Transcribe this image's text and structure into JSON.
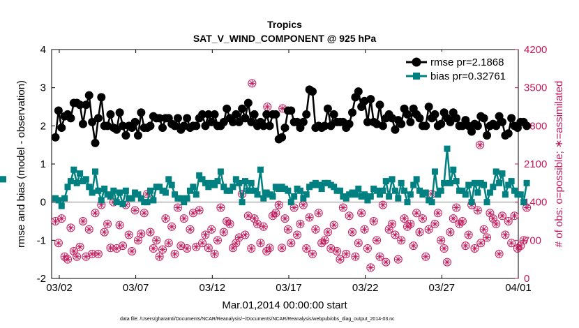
{
  "chart_data": {
    "type": "line",
    "title": "Tropics",
    "subtitle": "SAT_V_WIND_COMPONENT @ 925 hPa",
    "xlabel": "Mar.01,2014 00:00:00 start",
    "ylabel": "rmse and bias (model - observation)",
    "ylabel_right": "# of obs: o=possible; ∗=assimilated",
    "footnote": "data file: /Users/gharamti/Documents/NCAR/Reanalysis/~/Documents/NCAR/Reanalysis/webpub/obs_diag_output_2014-03.nc",
    "x_unit": "days since Mar.01,2014",
    "xlim": [
      0.5,
      31.0
    ],
    "ylim": [
      -2,
      4
    ],
    "ylim_right": [
      0,
      4200
    ],
    "x_ticks": [
      1,
      6,
      11,
      16,
      21,
      26,
      31
    ],
    "x_tick_labels": [
      "03/02",
      "03/07",
      "03/12",
      "03/17",
      "03/22",
      "03/27",
      "04/01"
    ],
    "y_ticks": [
      -2,
      -1,
      0,
      1,
      2,
      3,
      4
    ],
    "y_tick_labels": [
      "-2",
      "-1",
      "0",
      "1",
      "2",
      "3",
      "4"
    ],
    "y2_ticks": [
      0,
      700,
      1400,
      2100,
      2800,
      3500,
      4200
    ],
    "y2_tick_labels": [
      "0",
      "700",
      "1400",
      "2100",
      "2800",
      "3500",
      "4200"
    ],
    "legend_position": "top-right",
    "colors": {
      "rmse": "#000000",
      "bias": "#008080",
      "obs": "#c2185b",
      "zero_line": "#b0b0b0"
    },
    "series": [
      {
        "name": "rmse",
        "legend_label": "rmse pr=2.1868",
        "axis": "left",
        "marker": "circle",
        "values": [
          1.7,
          2.4,
          1.95,
          2.25,
          2.3,
          2.2,
          2.6,
          2.6,
          2.55,
          2.05,
          2.55,
          2.8,
          2.1,
          1.55,
          2.2,
          2.75,
          2.0,
          2.0,
          2.3,
          1.95,
          1.9,
          2.35,
          2.0,
          1.75,
          2.0,
          1.95,
          2.1,
          1.75,
          2.35,
          1.95,
          1.95,
          2.0,
          2.25,
          2.2,
          2.2,
          1.95,
          2.2,
          2.2,
          2.05,
          2.0,
          2.2,
          1.9,
          2.0,
          2.2,
          1.95,
          2.0,
          2.0,
          2.2,
          2.3,
          2.0,
          2.3,
          2.1,
          2.3,
          2.0,
          2.0,
          2.1,
          2.45,
          2.2,
          2.1,
          2.3,
          2.1,
          2.45,
          2.2,
          2.6,
          2.1,
          2.3,
          2.0,
          2.1,
          2.0,
          2.3,
          2.0,
          2.3,
          2.3,
          1.65,
          1.7,
          1.95,
          2.4,
          2.4,
          2.1,
          2.1,
          1.95,
          2.1,
          2.3,
          2.95,
          2.9,
          1.95,
          2.0,
          1.95,
          2.0,
          2.45,
          2.0,
          2.3,
          2.1,
          2.1,
          2.1,
          1.95,
          2.05,
          2.35,
          2.75,
          2.9,
          2.5,
          2.65,
          2.1,
          2.7,
          2.1,
          2.05,
          2.55,
          2.0,
          2.2,
          2.3,
          2.2,
          1.9,
          2.15,
          2.05,
          2.45,
          2.3,
          2.1,
          2.45,
          2.3,
          2.2,
          2.0,
          2.0,
          2.5,
          2.2,
          2.3,
          2.0,
          2.05,
          2.35,
          2.2,
          2.1,
          2.35,
          2.2,
          2.0,
          2.0,
          2.15,
          2.0,
          1.85,
          2.05,
          2.0,
          2.25,
          2.2,
          1.75,
          2.0,
          2.05,
          2.0,
          2.25,
          2.1,
          1.75,
          1.8,
          2.2,
          2.0,
          1.95,
          2.1,
          2.1,
          2.0
        ]
      },
      {
        "name": "bias",
        "legend_label": "bias pr=0.32761",
        "axis": "left",
        "marker": "square",
        "values": [
          0.1,
          0.05,
          -0.1,
          0.1,
          0.4,
          0.55,
          0.85,
          0.5,
          0.75,
          0.55,
          0.6,
          0.4,
          0.25,
          0.8,
          0.3,
          0.05,
          0.35,
          0.2,
          0.15,
          0.3,
          0.0,
          0.25,
          -0.05,
          0.3,
          0.1,
          0.1,
          0.25,
          0.2,
          0.1,
          0.0,
          0.0,
          0.3,
          0.05,
          0.4,
          0.4,
          0.3,
          0.25,
          0.6,
          0.45,
          0.2,
          0.1,
          0.1,
          0.0,
          0.1,
          0.3,
          0.4,
          0.2,
          0.7,
          0.6,
          0.5,
          0.4,
          0.5,
          0.45,
          0.55,
          0.8,
          0.4,
          0.3,
          0.3,
          0.4,
          0.6,
          0.5,
          0.0,
          0.55,
          0.3,
          0.5,
          0.3,
          0.2,
          0.85,
          0.1,
          0.25,
          0.2,
          0.15,
          0.4,
          0.35,
          0.4,
          0.35,
          0.3,
          0.0,
          0.15,
          0.35,
          0.3,
          0.1,
          0.2,
          0.4,
          0.45,
          0.5,
          0.45,
          0.35,
          0.5,
          0.5,
          0.45,
          0.4,
          0.3,
          0.3,
          0.15,
          0.1,
          0.2,
          0.25,
          0.2,
          0.35,
          0.15,
          0.2,
          0.05,
          0.15,
          0.35,
          0.3,
          0.2,
          0.3,
          0.55,
          0.15,
          0.6,
          0.3,
          0.1,
          0.5,
          0.3,
          0.0,
          0.2,
          0.45,
          0.6,
          0.3,
          0.2,
          0.25,
          0.05,
          0.0,
          0.8,
          0.2,
          0.3,
          0.5,
          1.4,
          0.5,
          0.85,
          0.55,
          0.3,
          0.3,
          0.2,
          0.45,
          0.0,
          0.5,
          0.25,
          0.5,
          0.45,
          0.0,
          0.25,
          0.4,
          0.8,
          0.5,
          0.75,
          0.2,
          0.45,
          0.55,
          0.3,
          0.2,
          0.2,
          0.0,
          0.5,
          0.6,
          0.6
        ]
      },
      {
        "name": "obs_possible",
        "axis": "right",
        "marker": "open-circle",
        "values": [
          1050,
          650,
          1100,
          400,
          350,
          930,
          500,
          400,
          580,
          1050,
          400,
          900,
          450,
          1200,
          450,
          1350,
          850,
          1000,
          560,
          1400,
          550,
          980,
          600,
          1350,
          800,
          500,
          1250,
          700,
          820,
          1200,
          1550,
          850,
          550,
          700,
          400,
          530,
          1100,
          650,
          950,
          450,
          1300,
          600,
          1100,
          550,
          900,
          1200,
          580,
          1250,
          650,
          800,
          560,
          900,
          450,
          700,
          1300,
          850,
          1050,
          1000,
          560,
          650,
          750,
          1550,
          800,
          1150,
          550,
          1100,
          1000,
          650,
          950,
          500,
          560,
          1150,
          1200,
          1350,
          560,
          1100,
          900,
          650,
          1300,
          800,
          1000,
          1350,
          550,
          1120,
          450,
          900,
          1200,
          650,
          700,
          850,
          550,
          980,
          500,
          350,
          1300,
          450,
          1150,
          850,
          400,
          650,
          1200,
          900,
          550,
          200,
          1050,
          700,
          400,
          1350,
          300,
          900,
          1000,
          800,
          350,
          700,
          1100,
          950,
          1000,
          600,
          1200,
          850,
          1100,
          400,
          900,
          1550,
          1000,
          1200,
          700,
          550,
          300,
          850,
          1100,
          1300,
          1000,
          1050,
          600,
          800,
          1350,
          550,
          1250,
          650,
          900,
          750,
          1200,
          1100,
          1000,
          450,
          1150,
          800,
          1050,
          650,
          1150,
          550,
          600,
          700,
          1300,
          0
        ]
      },
      {
        "name": "obs_assimilated",
        "axis": "right",
        "marker": "asterisk",
        "note": "overlaid on the possible-count circles",
        "values": [
          1050,
          650,
          1100,
          400,
          350,
          930,
          500,
          400,
          580,
          1050,
          400,
          900,
          450,
          1200,
          450,
          1350,
          850,
          1000,
          560,
          1400,
          550,
          980,
          600,
          1350,
          800,
          500,
          1250,
          700,
          820,
          1200,
          1550,
          850,
          550,
          700,
          400,
          530,
          1100,
          650,
          950,
          450,
          1300,
          600,
          1100,
          550,
          900,
          1200,
          580,
          1250,
          650,
          800,
          560,
          900,
          450,
          700,
          1300,
          850,
          1050,
          1000,
          560,
          650,
          750,
          1550,
          800,
          1150,
          550,
          1100,
          1000,
          650,
          950,
          500,
          560,
          1150,
          1200,
          1350,
          560,
          1100,
          900,
          650,
          1300,
          800,
          1000,
          1350,
          550,
          1120,
          450,
          900,
          1200,
          650,
          700,
          850,
          550,
          980,
          500,
          350,
          1300,
          450,
          1150,
          850,
          400,
          650,
          1200,
          900,
          550,
          200,
          1050,
          700,
          400,
          1350,
          300,
          900,
          1000,
          800,
          350,
          700,
          1100,
          950,
          1000,
          600,
          1200,
          850,
          1100,
          400,
          900,
          1550,
          1000,
          1200,
          700,
          550,
          300,
          850,
          1100,
          1300,
          1000,
          1050,
          600,
          800,
          1350,
          550,
          1250,
          650,
          900,
          750,
          1200,
          1100,
          1000,
          450,
          1150,
          800,
          1050,
          650,
          1150,
          550,
          600,
          700,
          1300,
          0
        ]
      }
    ],
    "outliers": {
      "x": [
        13.6,
        14.6,
        15.6,
        28.5
      ],
      "y_right": [
        3580,
        3150,
        3120,
        2450
      ]
    }
  }
}
